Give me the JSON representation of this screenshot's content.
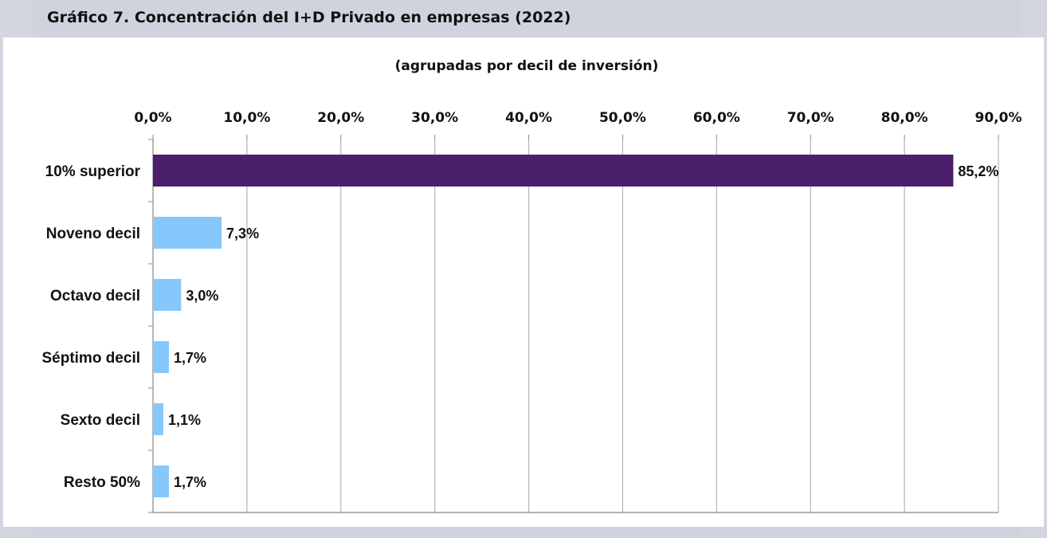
{
  "header": {
    "title": "Gráfico 7. Concentración del I+D Privado en empresas (2022)"
  },
  "chart_data": {
    "type": "bar",
    "orientation": "horizontal",
    "title": "Gráfico 7. Concentración del I+D Privado en empresas (2022)",
    "subtitle": "(agrupadas por decil de inversión)",
    "xlabel": "",
    "ylabel": "",
    "xlim": [
      0,
      90
    ],
    "x_axis_position": "top",
    "grid": true,
    "ticks": [
      "0,0%",
      "10,0%",
      "20,0%",
      "30,0%",
      "40,0%",
      "50,0%",
      "60,0%",
      "70,0%",
      "80,0%",
      "90,0%"
    ],
    "categories": [
      "10% superior",
      "Noveno decil",
      "Octavo decil",
      "Séptimo decil",
      "Sexto decil",
      "Resto 50%"
    ],
    "values": [
      85.2,
      7.3,
      3.0,
      1.7,
      1.1,
      1.7
    ],
    "value_labels": [
      "85,2%",
      "7,3%",
      "3,0%",
      "1,7%",
      "1,1%",
      "1,7%"
    ],
    "colors": [
      "#4b1f6b",
      "#86c8fb",
      "#86c8fb",
      "#86c8fb",
      "#86c8fb",
      "#86c8fb"
    ]
  }
}
